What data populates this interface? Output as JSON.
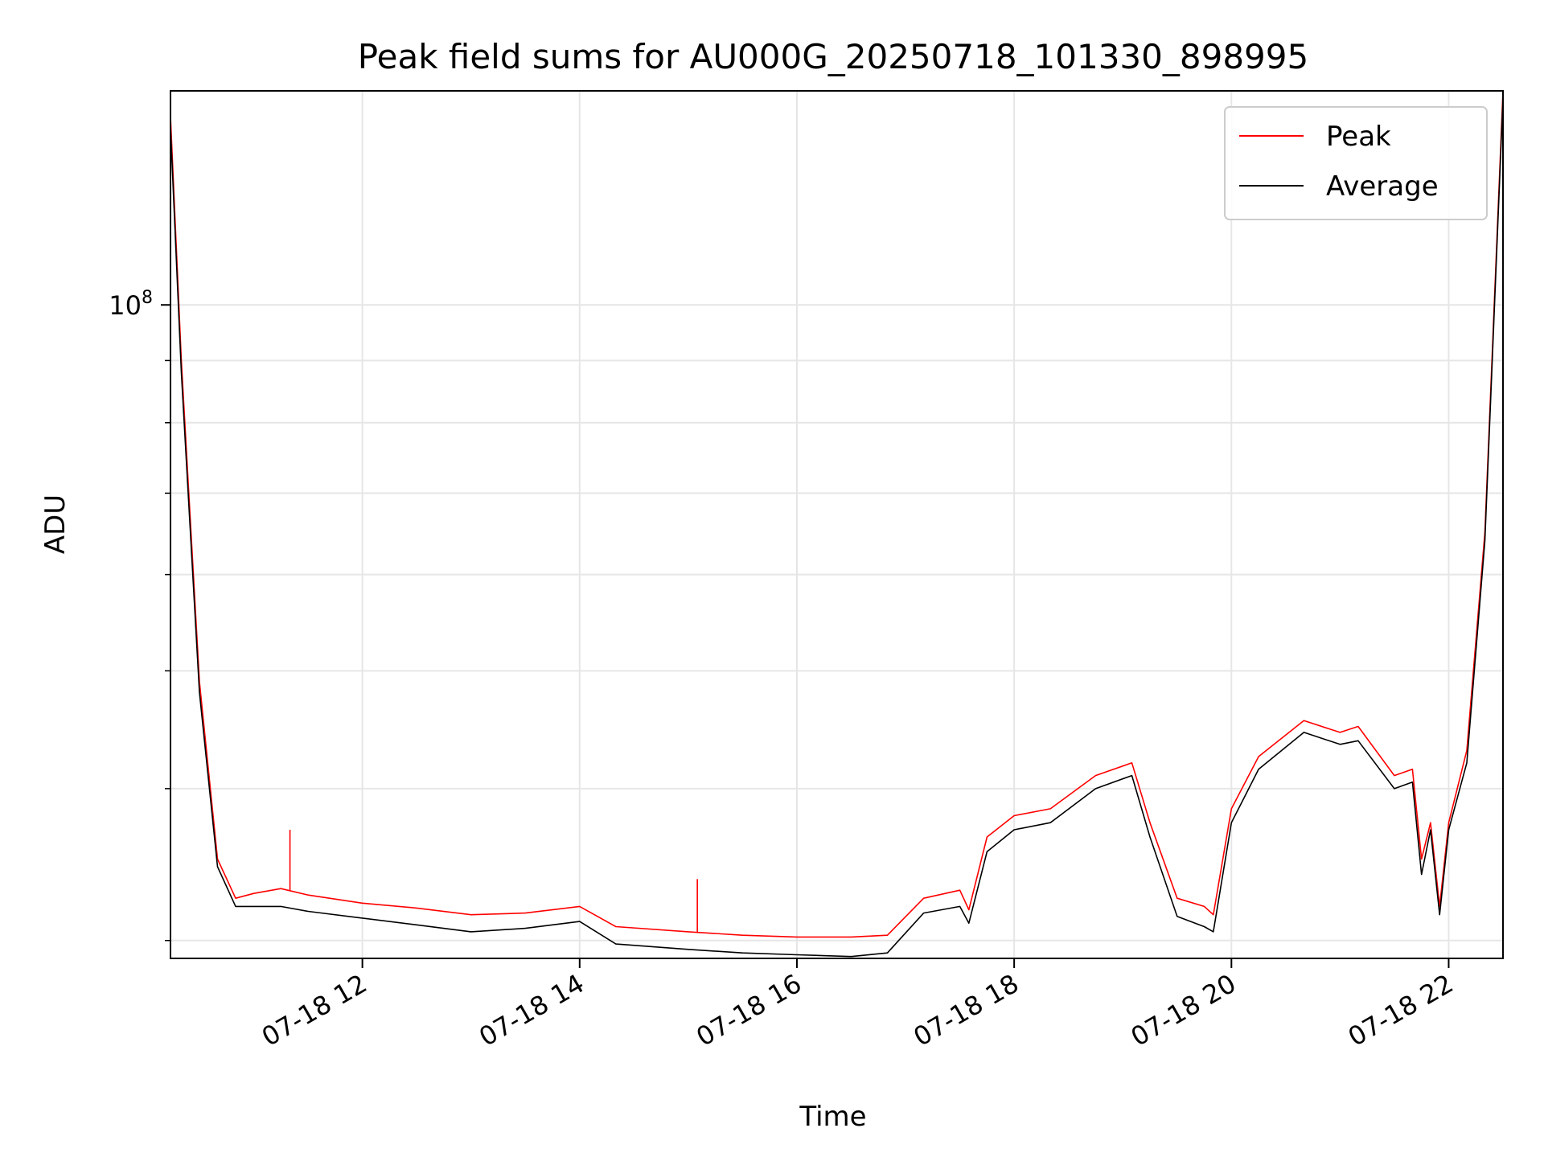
{
  "chart_data": {
    "type": "line",
    "title": "Peak field sums for AU000G_20250718_101330_898995",
    "xlabel": "Time",
    "ylabel": "ADU",
    "y_scale": "log",
    "ylim": [
      29000000,
      150000000
    ],
    "xlim": [
      "2025-07-18 10:14",
      "2025-07-18 22:30"
    ],
    "grid": true,
    "legend_position": "top-right",
    "x_ticks": [
      {
        "t": "2025-07-18 12:00",
        "label": "07-18 12"
      },
      {
        "t": "2025-07-18 14:00",
        "label": "07-18 14"
      },
      {
        "t": "2025-07-18 16:00",
        "label": "07-18 16"
      },
      {
        "t": "2025-07-18 18:00",
        "label": "07-18 18"
      },
      {
        "t": "2025-07-18 20:00",
        "label": "07-18 20"
      },
      {
        "t": "2025-07-18 22:00",
        "label": "07-18 22"
      }
    ],
    "y_major_ticks": [
      {
        "value": 100000000,
        "label": "10^8"
      }
    ],
    "y_minor_ticks": [
      30000000,
      40000000,
      50000000,
      60000000,
      70000000,
      80000000,
      90000000
    ],
    "x": [
      "2025-07-18 10:14",
      "2025-07-18 10:20",
      "2025-07-18 10:30",
      "2025-07-18 10:40",
      "2025-07-18 10:50",
      "2025-07-18 11:00",
      "2025-07-18 11:15",
      "2025-07-18 11:30",
      "2025-07-18 12:00",
      "2025-07-18 12:30",
      "2025-07-18 13:00",
      "2025-07-18 13:30",
      "2025-07-18 14:00",
      "2025-07-18 14:20",
      "2025-07-18 15:00",
      "2025-07-18 15:30",
      "2025-07-18 16:00",
      "2025-07-18 16:30",
      "2025-07-18 16:50",
      "2025-07-18 17:10",
      "2025-07-18 17:30",
      "2025-07-18 17:35",
      "2025-07-18 17:45",
      "2025-07-18 18:00",
      "2025-07-18 18:20",
      "2025-07-18 18:45",
      "2025-07-18 19:05",
      "2025-07-18 19:15",
      "2025-07-18 19:30",
      "2025-07-18 19:45",
      "2025-07-18 19:50",
      "2025-07-18 20:00",
      "2025-07-18 20:15",
      "2025-07-18 20:40",
      "2025-07-18 21:00",
      "2025-07-18 21:10",
      "2025-07-18 21:30",
      "2025-07-18 21:40",
      "2025-07-18 21:45",
      "2025-07-18 21:50",
      "2025-07-18 21:55",
      "2025-07-18 22:00",
      "2025-07-18 22:10",
      "2025-07-18 22:20",
      "2025-07-18 22:30"
    ],
    "series": [
      {
        "name": "Peak",
        "color": "#ff0000",
        "values": [
          143000000,
          90000000,
          49000000,
          35000000,
          32500000,
          32800000,
          33100000,
          32700000,
          32200000,
          31900000,
          31500000,
          31600000,
          32000000,
          30800000,
          30500000,
          30300000,
          30200000,
          30200000,
          30300000,
          32500000,
          33000000,
          31800000,
          36500000,
          38000000,
          38500000,
          41000000,
          42000000,
          37500000,
          32500000,
          32000000,
          31500000,
          38500000,
          42500000,
          45500000,
          44500000,
          45000000,
          41000000,
          41500000,
          35000000,
          37500000,
          32000000,
          37500000,
          43000000,
          65000000,
          150000000
        ]
      },
      {
        "name": "Average",
        "color": "#000000",
        "values": [
          140000000,
          88000000,
          48000000,
          34500000,
          32000000,
          32000000,
          32000000,
          31700000,
          31300000,
          30900000,
          30500000,
          30700000,
          31100000,
          29800000,
          29500000,
          29300000,
          29200000,
          29100000,
          29300000,
          31600000,
          32000000,
          31000000,
          35500000,
          37000000,
          37500000,
          40000000,
          41000000,
          36500000,
          31400000,
          30800000,
          30500000,
          37500000,
          41500000,
          44500000,
          43500000,
          43800000,
          40000000,
          40500000,
          34000000,
          37000000,
          31500000,
          37000000,
          42000000,
          64000000,
          148000000
        ]
      }
    ],
    "spikes": [
      {
        "series": "Peak",
        "t": "2025-07-18 11:20",
        "value": 37000000
      },
      {
        "series": "Peak",
        "t": "2025-07-18 15:05",
        "value": 33700000
      }
    ]
  }
}
